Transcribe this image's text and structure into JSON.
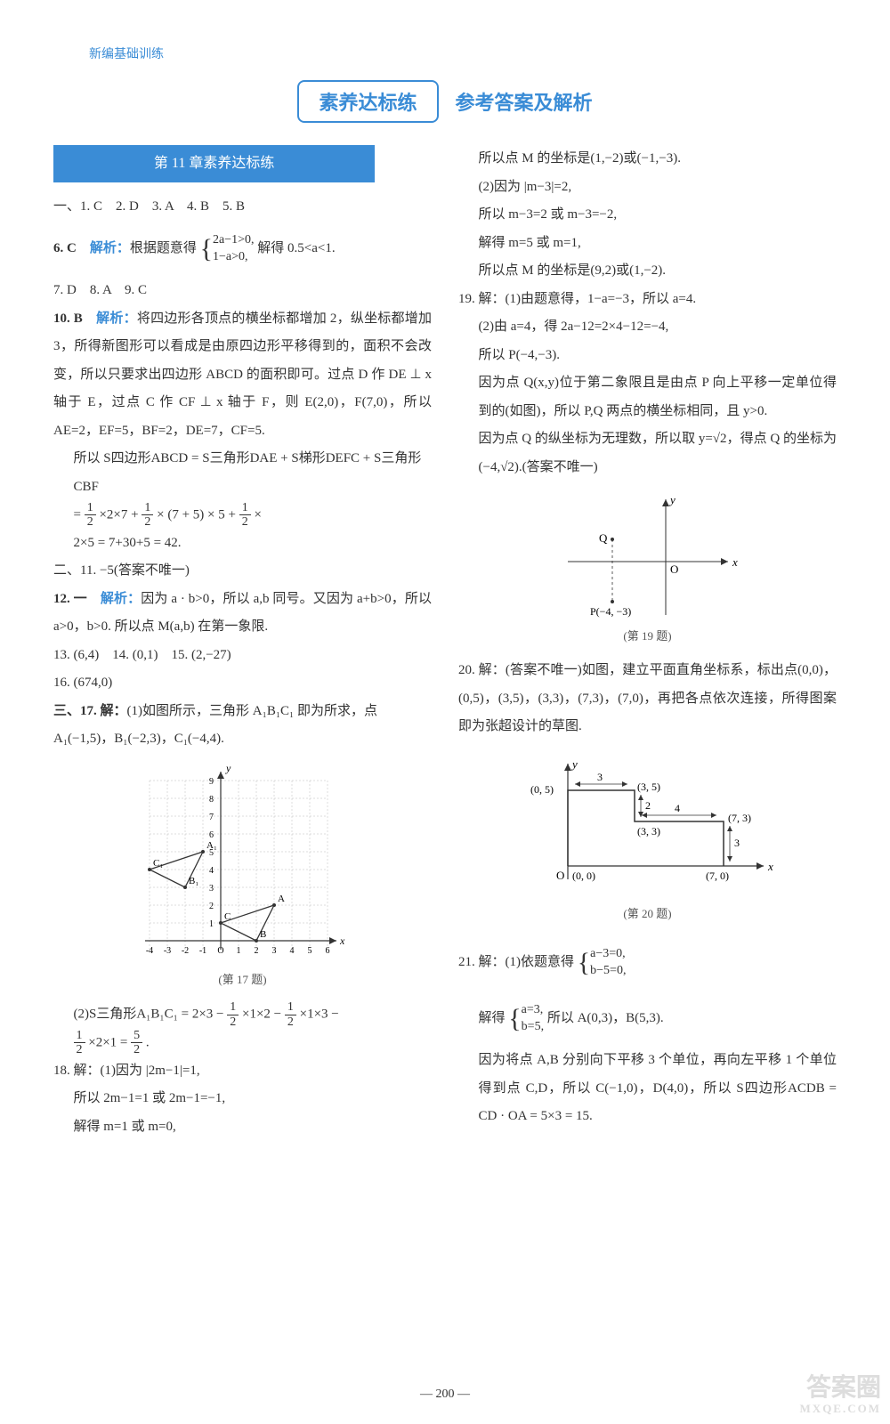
{
  "header": {
    "book": "新编基础训练"
  },
  "title": {
    "boxed": "素养达标练",
    "plain": "参考答案及解析"
  },
  "section": {
    "heading": "第 11 章素养达标练"
  },
  "left": {
    "l1": "一、1. C　2. D　3. A　4. B　5. B",
    "l2a": "6. C　",
    "l2a_blue": "解析：",
    "l2b": "根据题意得",
    "l2c": "2a−1>0,",
    "l2d": "1−a>0,",
    "l2e": "解得 0.5<a<1.",
    "l3": "7. D　8. A　9. C",
    "l4a": "10. B　",
    "l4_blue": "解析：",
    "l4b": "将四边形各顶点的横坐标都增加 2，纵坐标都增加 3，所得新图形可以看成是由原四边形平移得到的，面积不会改变，所以只要求出四边形 ABCD 的面积即可。过点 D 作 DE ⊥ x 轴于 E，过点 C 作 CF ⊥ x 轴于 F，则 E(2,0)，F(7,0)，所以 AE=2，EF=5，BF=2，DE=7，CF=5.",
    "l4c": "所以 S四边形ABCD = S三角形DAE + S梯形DEFC + S三角形CBF",
    "l4d_eq": "= ",
    "l4d_1n": "1",
    "l4d_1d": "2",
    "l4d_mid1": "×2×7 + ",
    "l4d_2n": "1",
    "l4d_2d": "2",
    "l4d_mid2": " × (7 + 5) × 5 + ",
    "l4d_3n": "1",
    "l4d_3d": "2",
    "l4d_mid3": " ×",
    "l4e": "2×5 = 7+30+5 = 42.",
    "l5": "二、11. −5(答案不唯一)",
    "l6a": "12. 一　",
    "l6_blue": "解析：",
    "l6b": "因为 a · b>0，所以 a,b 同号。又因为 a+b>0，所以 a>0，b>0. 所以点 M(a,b) 在第一象限.",
    "l7": "13. (6,4)　14. (0,1)　15. (2,−27)",
    "l8": "16. (674,0)",
    "l9a": "三、17. 解：",
    "l9b": "(1)如图所示，三角形 A₁B₁C₁ 即为所求，点 A₁(−1,5)，B₁(−2,3)，C₁(−4,4).",
    "fig17cap": "(第 17 题)",
    "l10a": "(2)S三角形A₁B₁C₁ = 2×3 − ",
    "l10_1n": "1",
    "l10_1d": "2",
    "l10b": "×1×2 − ",
    "l10_2n": "1",
    "l10_2d": "2",
    "l10c": "×1×3 −",
    "l10d_1n": "1",
    "l10d_1d": "2",
    "l10e": "×2×1 = ",
    "l10f_n": "5",
    "l10f_d": "2",
    "l10g": ".",
    "l11": "18. 解：(1)因为 |2m−1|=1,",
    "l12": "所以 2m−1=1 或 2m−1=−1,",
    "l13": "解得 m=1 或 m=0,"
  },
  "right": {
    "r1": "所以点 M 的坐标是(1,−2)或(−1,−3).",
    "r2": "(2)因为 |m−3|=2,",
    "r3": "所以 m−3=2 或 m−3=−2,",
    "r4": "解得 m=5 或 m=1,",
    "r5": "所以点 M 的坐标是(9,2)或(1,−2).",
    "r6": "19. 解：(1)由题意得，1−a=−3，所以 a=4.",
    "r7": "(2)由 a=4，得 2a−12=2×4−12=−4,",
    "r8": "所以 P(−4,−3).",
    "r9": "因为点 Q(x,y)位于第二象限且是由点 P 向上平移一定单位得到的(如图)，所以 P,Q 两点的横坐标相同，且 y>0.",
    "r10": "因为点 Q 的纵坐标为无理数，所以取 y=√2，得点 Q 的坐标为(−4,√2).(答案不唯一)",
    "fig19_Q": "Q",
    "fig19_O": "O",
    "fig19_x": "x",
    "fig19_y": "y",
    "fig19_P": "P(−4, −3)",
    "fig19cap": "(第 19 题)",
    "r11": "20. 解：(答案不唯一)如图，建立平面直角坐标系，标出点(0,0)，(0,5)，(3,5)，(3,3)，(7,3)，(7,0)，再把各点依次连接，所得图案即为张超设计的草图.",
    "fig20_05": "(0, 5)",
    "fig20_35": "(3, 5)",
    "fig20_33": "(3, 3)",
    "fig20_73": "(7, 3)",
    "fig20_00": "(0, 0)",
    "fig20_70": "(7, 0)",
    "fig20_3": "3",
    "fig20_4": "4",
    "fig20_2": "2",
    "fig20_3b": "3",
    "fig20_O": "O",
    "fig20_x": "x",
    "fig20_y": "y",
    "fig20cap": "(第 20 题)",
    "r12a": "21. 解：(1)依题意得",
    "r12b": "a−3=0,",
    "r12c": "b−5=0,",
    "r13a": "解得",
    "r13b": "a=3,",
    "r13c": "b=5,",
    "r13d": "所以 A(0,3)，B(5,3).",
    "r14": "因为将点 A,B 分别向下平移 3 个单位，再向左平移 1 个单位得到点 C,D，所以 C(−1,0)，D(4,0)，所以 S四边形ACDB = CD · OA = 5×3 = 15."
  },
  "pagenum": "— 200 —",
  "watermark": {
    "big": "答案圈",
    "small": "MXQE.COM"
  },
  "fig17": {
    "xmin": -4,
    "xmax": 6,
    "ymin": -1,
    "ymax": 9,
    "axis_color": "#333333",
    "grid_color": "#bbbbbb",
    "triangle1": {
      "A": [
        3,
        2
      ],
      "B": [
        2,
        0
      ],
      "C": [
        0,
        1
      ],
      "label_A": "A",
      "label_B": "B",
      "label_C": "C"
    },
    "triangle2": {
      "A": [
        -1,
        5
      ],
      "B": [
        -2,
        3
      ],
      "C": [
        -4,
        4
      ],
      "label_A": "A₁",
      "label_B": "B₁",
      "label_C": "C₁"
    },
    "xticks": [
      "-4",
      "-3",
      "-2",
      "-1",
      "O",
      "1",
      "2",
      "3",
      "4",
      "5",
      "6"
    ],
    "ylabel_vals": [
      1,
      2,
      3,
      4,
      5,
      6,
      7,
      8,
      9
    ]
  }
}
